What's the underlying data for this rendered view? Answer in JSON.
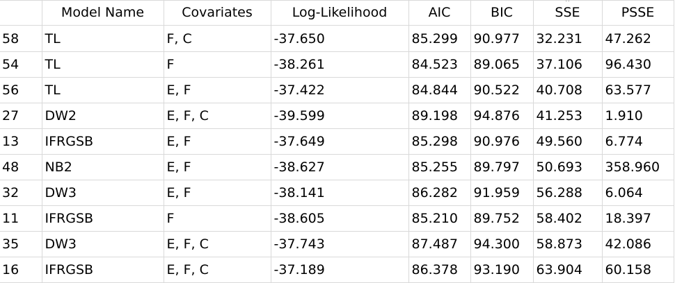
{
  "table": {
    "columns": [
      "",
      "Model Name",
      "Covariates",
      "Log-Likelihood",
      "AIC",
      "BIC",
      "SSE",
      "PSSE"
    ],
    "sorted_column": "SSE",
    "sort_indicator": "^",
    "rows": [
      [
        "58",
        "TL",
        "F, C",
        "-37.650",
        "85.299",
        "90.977",
        "32.231",
        "47.262"
      ],
      [
        "54",
        "TL",
        "F",
        "-38.261",
        "84.523",
        "89.065",
        "37.106",
        "96.430"
      ],
      [
        "56",
        "TL",
        "E, F",
        "-37.422",
        "84.844",
        "90.522",
        "40.708",
        "63.577"
      ],
      [
        "27",
        "DW2",
        "E, F, C",
        "-39.599",
        "89.198",
        "94.876",
        "41.253",
        "1.910"
      ],
      [
        "13",
        "IFRGSB",
        "E, F",
        "-37.649",
        "85.298",
        "90.976",
        "49.560",
        "6.774"
      ],
      [
        "48",
        "NB2",
        "E, F",
        "-38.627",
        "85.255",
        "89.797",
        "50.693",
        "358.960"
      ],
      [
        "32",
        "DW3",
        "E, F",
        "-38.141",
        "86.282",
        "91.959",
        "56.288",
        "6.064"
      ],
      [
        "11",
        "IFRGSB",
        "F",
        "-38.605",
        "85.210",
        "89.752",
        "58.402",
        "18.397"
      ],
      [
        "35",
        "DW3",
        "E, F, C",
        "-37.743",
        "87.487",
        "94.300",
        "58.873",
        "42.086"
      ],
      [
        "16",
        "IFRGSB",
        "E, F, C",
        "-37.189",
        "86.378",
        "93.190",
        "63.904",
        "60.158"
      ]
    ]
  }
}
